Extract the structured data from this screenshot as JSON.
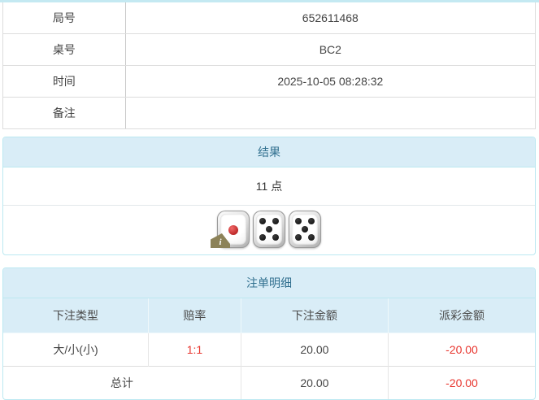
{
  "info_table": {
    "rows": [
      {
        "label": "局号",
        "value": "652611468"
      },
      {
        "label": "桌号",
        "value": "BC2"
      },
      {
        "label": "时间",
        "value": "2025-10-05 08:28:32"
      },
      {
        "label": "备注",
        "value": ""
      }
    ]
  },
  "result_panel": {
    "title": "结果",
    "points": "11 点",
    "dice": [
      1,
      5,
      5
    ],
    "info_badge": {
      "text": "i",
      "die_index": 0
    }
  },
  "bets_panel": {
    "title": "注单明细",
    "columns": [
      "下注类型",
      "赔率",
      "下注金额",
      "派彩金额"
    ],
    "rows": [
      {
        "type": "大/小(小)",
        "odds": "1:1",
        "bet": "20.00",
        "payout": "-20.00"
      }
    ],
    "total": {
      "label": "总计",
      "bet": "20.00",
      "payout": "-20.00"
    }
  },
  "colors": {
    "panel_border": "#bce8f1",
    "panel_heading_bg": "#d9edf7",
    "panel_heading_text": "#31708f",
    "negative_text": "#e8352e",
    "top_strip": "#c4e9f2",
    "table_border": "#dddddd"
  }
}
